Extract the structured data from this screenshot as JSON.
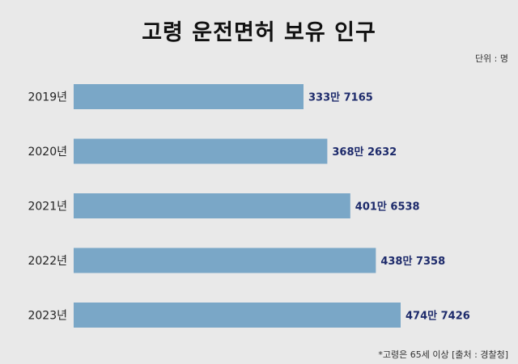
{
  "title": "고령 운전면허 보유 인구",
  "unit": "단위 : 명",
  "source": "*고령은 65세 이상 [출처 : 경찰청]",
  "colors": {
    "bar": "#7aa7c7",
    "value_text": "#1d2a6b",
    "background": "#e9e9e9"
  },
  "chart_data": {
    "type": "bar",
    "orientation": "horizontal",
    "categories": [
      "2019년",
      "2020년",
      "2021년",
      "2022년",
      "2023년"
    ],
    "values": [
      3337165,
      3682632,
      4016538,
      4387358,
      4747426
    ],
    "value_labels": [
      "333만 7165",
      "368만 2632",
      "401만 6538",
      "438만 7358",
      "474만 7426"
    ],
    "title": "고령 운전면허 보유 인구",
    "xlabel": "",
    "ylabel": "",
    "grid": false,
    "legend": "none"
  }
}
